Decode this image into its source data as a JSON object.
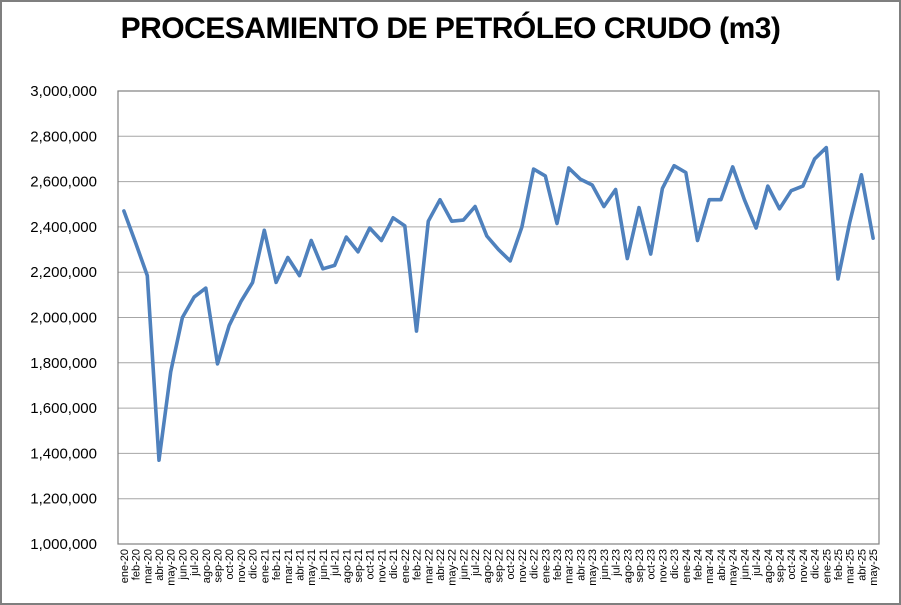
{
  "chart_title": "PROCESAMIENTO DE PETRÓLEO CRUDO (m3)",
  "colors": {
    "series_line": "#4F81BD",
    "plot_border": "#808080",
    "gridline": "#A6A6A6",
    "outer_border": "#7F7F7F",
    "background": "#FFFFFF",
    "text": "#000000"
  },
  "chart_data": {
    "type": "line",
    "title": "PROCESAMIENTO DE PETRÓLEO CRUDO (m3)",
    "xlabel": "",
    "ylabel": "",
    "ylim": [
      1000000,
      3000000
    ],
    "ytick_step": 200000,
    "grid": "horizontal",
    "legend": "none",
    "y_tick_labels": [
      "1,000,000",
      "1,200,000",
      "1,400,000",
      "1,600,000",
      "1,800,000",
      "2,000,000",
      "2,200,000",
      "2,400,000",
      "2,600,000",
      "2,800,000",
      "3,000,000"
    ],
    "categories": [
      "ene-20",
      "feb-20",
      "mar-20",
      "abr-20",
      "may-20",
      "jun-20",
      "jul-20",
      "ago-20",
      "sep-20",
      "oct-20",
      "nov-20",
      "dic-20",
      "ene-21",
      "feb-21",
      "mar-21",
      "abr-21",
      "may-21",
      "jun-21",
      "jul-21",
      "ago-21",
      "sep-21",
      "oct-21",
      "nov-21",
      "dic-21",
      "ene-22",
      "feb-22",
      "mar-22",
      "abr-22",
      "may-22",
      "jun-22",
      "jul-22",
      "ago-22",
      "sep-22",
      "oct-22",
      "nov-22",
      "dic-22",
      "ene-23",
      "feb-23",
      "mar-23",
      "abr-23",
      "may-23",
      "jun-23",
      "jul-23",
      "ago-23",
      "sep-23",
      "oct-23",
      "nov-23",
      "dic-23",
      "ene-24",
      "feb-24",
      "mar-24",
      "abr-24",
      "may-24",
      "jun-24",
      "jul-24",
      "ago-24",
      "sep-24",
      "oct-24",
      "nov-24",
      "dic-24",
      "ene-25",
      "feb-25",
      "mar-25",
      "abr-25",
      "may-25"
    ],
    "values": [
      2470000,
      2330000,
      2185000,
      1370000,
      1760000,
      2000000,
      2090000,
      2130000,
      1795000,
      1965000,
      2070000,
      2155000,
      2385000,
      2155000,
      2265000,
      2185000,
      2340000,
      2215000,
      2230000,
      2355000,
      2290000,
      2395000,
      2340000,
      2440000,
      2405000,
      1940000,
      2425000,
      2520000,
      2425000,
      2430000,
      2490000,
      2360000,
      2300000,
      2250000,
      2400000,
      2655000,
      2625000,
      2415000,
      2660000,
      2610000,
      2585000,
      2490000,
      2565000,
      2260000,
      2485000,
      2280000,
      2570000,
      2670000,
      2640000,
      2340000,
      2520000,
      2520000,
      2665000,
      2520000,
      2395000,
      2580000,
      2480000,
      2560000,
      2580000,
      2700000,
      2750000,
      2170000,
      2420000,
      2630000,
      2350000
    ]
  }
}
